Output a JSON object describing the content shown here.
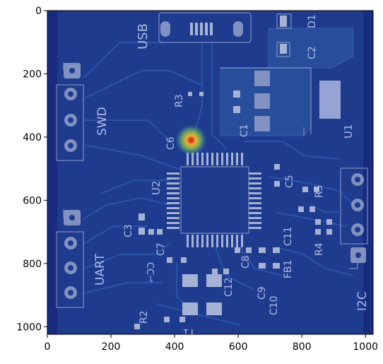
{
  "figure": {
    "x_ticks": [
      "0",
      "200",
      "400",
      "600",
      "800",
      "1000"
    ],
    "y_ticks": [
      "0",
      "200",
      "400",
      "600",
      "800",
      "1000"
    ],
    "x_range": [
      0,
      1024
    ],
    "y_range": [
      0,
      1024
    ],
    "y_inverted": true
  },
  "image": {
    "description_colors": {
      "board": "#1f3b8c",
      "board_dark": "#16297a",
      "trace": "#2c57a8",
      "copper_pour": "#2a4f9a",
      "pad": "#b8c2de",
      "silkscreen": "#d9e4ff",
      "hotspot_center": "#ff4a1a",
      "hotspot_ring": "#b8e04a"
    },
    "silkscreen_labels": {
      "usb": "USB",
      "swd": "SWD",
      "uart": "UART",
      "i2c": "I2C",
      "u1": "U1",
      "u2": "U2",
      "d1": "D1",
      "c1": "C1",
      "c2": "C2",
      "c3": "C3",
      "c5": "C5",
      "c6": "C6",
      "c7": "C7",
      "c8": "C8",
      "c9": "C9",
      "c10": "C10",
      "c11": "C11",
      "c12": "C12",
      "r2": "R2",
      "r3": "R3",
      "r4": "R4",
      "r5": "R5",
      "fb1": "FB1",
      "y1": "Y1"
    },
    "hotspot": {
      "x": 452,
      "y": 410
    }
  }
}
